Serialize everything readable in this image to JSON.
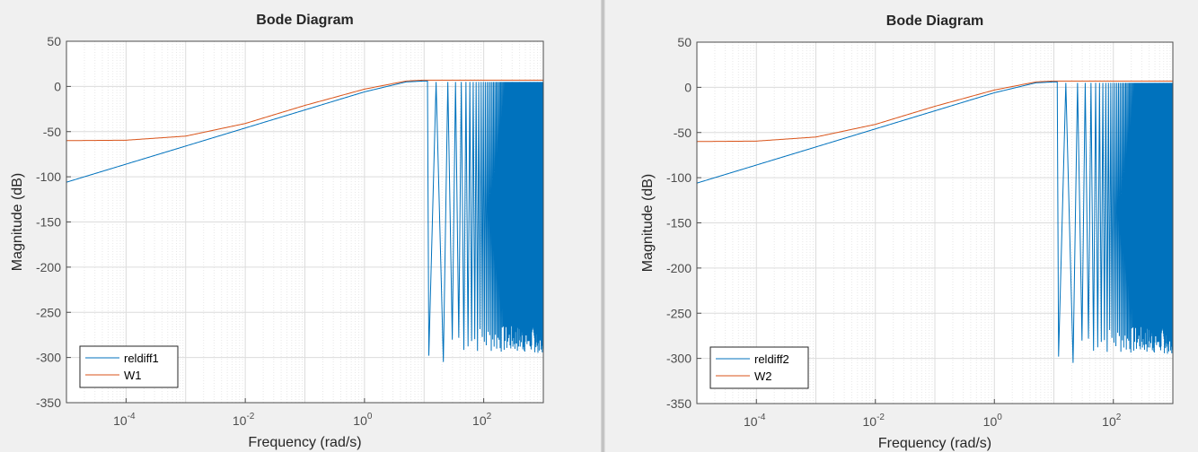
{
  "colors": {
    "series1": "#0072bd",
    "weight": "#d95319",
    "grid_major": "#dcdcdc",
    "grid_minor": "#e8e8e8",
    "axis": "#4d4d4d",
    "background": "#f0f0f0"
  },
  "chart_data": [
    {
      "type": "line",
      "title": "Bode Diagram",
      "xlabel": "Frequency  (rad/s)",
      "ylabel": "Magnitude (dB)",
      "xscale": "log",
      "xlim": [
        1e-05,
        1000
      ],
      "ylim": [
        -350,
        50
      ],
      "yticks": [
        50,
        0,
        -50,
        -100,
        -150,
        -200,
        -250,
        -300,
        -350
      ],
      "xticks": [
        {
          "base": "10",
          "exp": "-4",
          "value": 0.0001
        },
        {
          "base": "10",
          "exp": "-2",
          "value": 0.01
        },
        {
          "base": "10",
          "exp": "0",
          "value": 1
        },
        {
          "base": "10",
          "exp": "2",
          "value": 100
        }
      ],
      "grid": true,
      "legend_position": "bottom-left",
      "series": [
        {
          "name": "reldiff1",
          "color": "#0072bd",
          "shape": "highpass_with_notches",
          "points": [
            [
              1e-05,
              -106
            ],
            [
              0.0001,
              -86
            ],
            [
              0.001,
              -66
            ],
            [
              0.01,
              -46
            ],
            [
              0.1,
              -26
            ],
            [
              1,
              -6
            ],
            [
              5,
              5
            ],
            [
              10,
              6
            ]
          ],
          "first_notch": 12,
          "notch_depth_min": -305,
          "notch_floor": -280
        },
        {
          "name": "W1",
          "color": "#d95319",
          "shape": "shelf",
          "points": [
            [
              1e-05,
              -60
            ],
            [
              0.0001,
              -59.5
            ],
            [
              0.001,
              -55
            ],
            [
              0.01,
              -41
            ],
            [
              0.1,
              -21
            ],
            [
              1,
              -3
            ],
            [
              5,
              6
            ],
            [
              10,
              7
            ],
            [
              1000,
              7
            ]
          ]
        }
      ]
    },
    {
      "type": "line",
      "title": "Bode Diagram",
      "xlabel": "Frequency  (rad/s)",
      "ylabel": "Magnitude (dB)",
      "xscale": "log",
      "xlim": [
        1e-05,
        1000
      ],
      "ylim": [
        -350,
        50
      ],
      "yticks": [
        50,
        0,
        -50,
        -100,
        -150,
        -200,
        -250,
        -300,
        -350
      ],
      "xticks": [
        {
          "base": "10",
          "exp": "-4",
          "value": 0.0001
        },
        {
          "base": "10",
          "exp": "-2",
          "value": 0.01
        },
        {
          "base": "10",
          "exp": "0",
          "value": 1
        },
        {
          "base": "10",
          "exp": "2",
          "value": 100
        }
      ],
      "grid": true,
      "legend_position": "bottom-left",
      "series": [
        {
          "name": "reldiff2",
          "color": "#0072bd",
          "shape": "highpass_with_notches",
          "points": [
            [
              1e-05,
              -106
            ],
            [
              0.0001,
              -86
            ],
            [
              0.001,
              -66
            ],
            [
              0.01,
              -46
            ],
            [
              0.1,
              -26
            ],
            [
              1,
              -6
            ],
            [
              5,
              5
            ],
            [
              10,
              6
            ]
          ],
          "first_notch": 12,
          "notch_depth_min": -305,
          "notch_floor": -280
        },
        {
          "name": "W2",
          "color": "#d95319",
          "shape": "shelf",
          "points": [
            [
              1e-05,
              -60
            ],
            [
              0.0001,
              -59.5
            ],
            [
              0.001,
              -55
            ],
            [
              0.01,
              -41
            ],
            [
              0.1,
              -21
            ],
            [
              1,
              -3
            ],
            [
              5,
              6
            ],
            [
              10,
              7
            ],
            [
              1000,
              7
            ]
          ]
        }
      ]
    }
  ]
}
